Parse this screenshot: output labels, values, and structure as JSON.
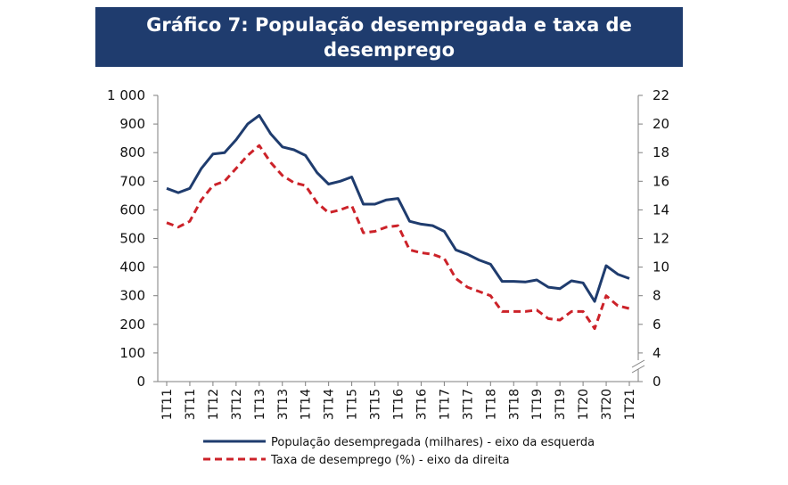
{
  "chart_data": {
    "type": "line",
    "title": "Gráfico 7: População desempregada e taxa de desemprego",
    "x": [
      "1T11",
      "2T11",
      "3T11",
      "4T11",
      "1T12",
      "2T12",
      "3T12",
      "4T12",
      "1T13",
      "2T13",
      "3T13",
      "4T13",
      "1T14",
      "2T14",
      "3T14",
      "4T14",
      "1T15",
      "2T15",
      "3T15",
      "4T15",
      "1T16",
      "2T16",
      "3T16",
      "4T16",
      "1T17",
      "2T17",
      "3T17",
      "4T17",
      "1T18",
      "2T18",
      "3T18",
      "4T18",
      "1T19",
      "2T19",
      "3T19",
      "4T19",
      "1T20",
      "2T20",
      "3T20",
      "4T20",
      "1T21"
    ],
    "x_tick_labels": [
      "1T11",
      "3T11",
      "1T12",
      "3T12",
      "1T13",
      "3T13",
      "1T14",
      "3T14",
      "1T15",
      "3T15",
      "1T16",
      "3T16",
      "1T17",
      "3T17",
      "1T18",
      "3T18",
      "1T19",
      "3T19",
      "1T20",
      "3T20",
      "1T21"
    ],
    "y_left": {
      "ticks": [
        "0",
        "100",
        "200",
        "300",
        "400",
        "500",
        "600",
        "700",
        "800",
        "900",
        "1 000"
      ],
      "ylim": [
        0,
        1000
      ]
    },
    "y_right": {
      "ticks": [
        "0",
        "4",
        "6",
        "8",
        "10",
        "12",
        "14",
        "16",
        "18",
        "20",
        "22"
      ],
      "ylim": [
        2,
        22
      ]
    },
    "series": [
      {
        "name": "População desempregada (milhares) - eixo da esquerda",
        "axis": "left",
        "color": "#1f3c6e",
        "style": "solid",
        "values": [
          675,
          660,
          675,
          745,
          795,
          800,
          845,
          900,
          930,
          865,
          820,
          810,
          790,
          730,
          690,
          700,
          715,
          620,
          620,
          635,
          640,
          560,
          550,
          545,
          525,
          460,
          445,
          425,
          410,
          350,
          350,
          348,
          355,
          330,
          325,
          352,
          345,
          280,
          405,
          375,
          360
        ]
      },
      {
        "name": "Taxa de desemprego (%) - eixo da direita",
        "axis": "right",
        "color": "#cc2229",
        "style": "dashed",
        "values": [
          13.1,
          12.8,
          13.2,
          14.7,
          15.7,
          16.0,
          16.9,
          17.8,
          18.5,
          17.3,
          16.4,
          15.9,
          15.7,
          14.5,
          13.8,
          14.0,
          14.3,
          12.4,
          12.5,
          12.8,
          12.9,
          11.2,
          11.0,
          10.9,
          10.6,
          9.2,
          8.6,
          8.3,
          8.0,
          6.9,
          6.9,
          6.9,
          7.0,
          6.4,
          6.3,
          6.9,
          6.9,
          5.7,
          8.0,
          7.3,
          7.1
        ]
      }
    ],
    "legend_position": "bottom",
    "grid": false
  }
}
